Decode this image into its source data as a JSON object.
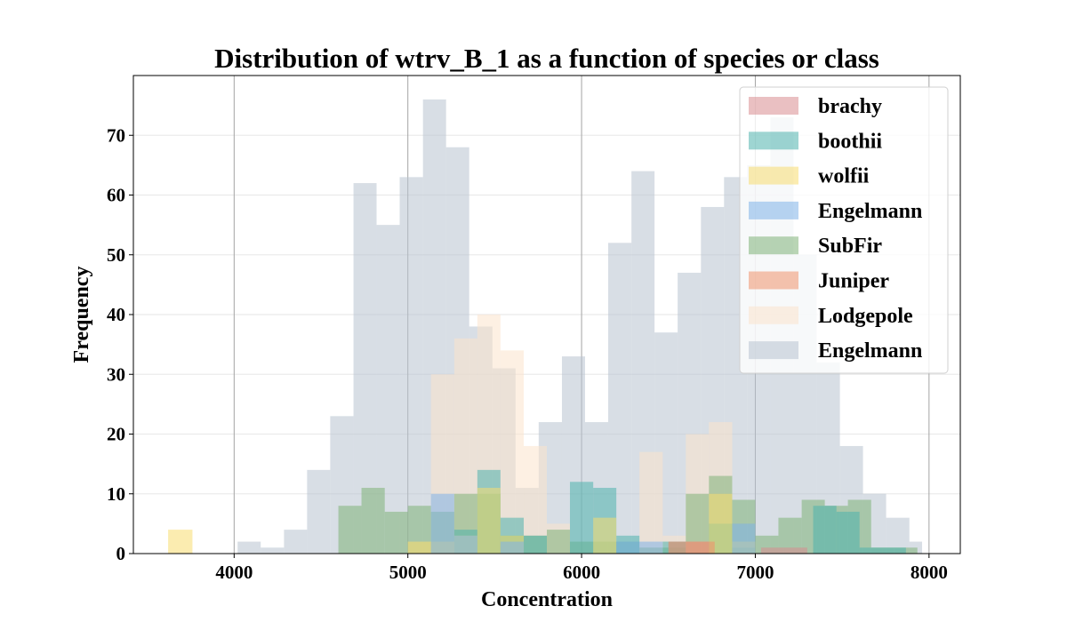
{
  "chart_data": {
    "type": "histogram",
    "title": "Distribution of wtrv_B_1 as a function of species or class",
    "xlabel": "Concentration",
    "ylabel": "Frequency",
    "xlim": [
      3420,
      8180
    ],
    "ylim": [
      0,
      80
    ],
    "x_ticks": [
      4000,
      5000,
      6000,
      7000,
      8000
    ],
    "y_ticks": [
      0,
      10,
      20,
      30,
      40,
      50,
      60,
      70
    ],
    "grid": {
      "x": true,
      "y": true
    },
    "legend_placement": "top-right",
    "series": [
      {
        "name": "brachy",
        "color": "#d98c8f",
        "bins": [
          [
            6500,
            6633,
            2
          ],
          [
            6633,
            6766,
            2
          ],
          [
            7033,
            7166,
            1
          ],
          [
            7166,
            7299,
            1
          ]
        ]
      },
      {
        "name": "boothii",
        "color": "#4fb3ad",
        "bins": [
          [
            5267,
            5400,
            4
          ],
          [
            5400,
            5533,
            14
          ],
          [
            5533,
            5667,
            6
          ],
          [
            5667,
            5800,
            3
          ],
          [
            5933,
            6067,
            12
          ],
          [
            6067,
            6200,
            11
          ],
          [
            6200,
            6333,
            3
          ],
          [
            6467,
            6600,
            2
          ],
          [
            6733,
            6867,
            5
          ],
          [
            6867,
            7000,
            1
          ],
          [
            7333,
            7467,
            8
          ],
          [
            7467,
            7600,
            7
          ],
          [
            7600,
            7733,
            1
          ],
          [
            7733,
            7867,
            1
          ]
        ]
      },
      {
        "name": "wolfii",
        "color": "#f7dc6f",
        "bins": [
          [
            3620,
            3760,
            4
          ],
          [
            5000,
            5133,
            2
          ],
          [
            5133,
            5267,
            2
          ],
          [
            5267,
            5400,
            3
          ],
          [
            5400,
            5533,
            11
          ],
          [
            5533,
            5667,
            3
          ],
          [
            6067,
            6200,
            6
          ],
          [
            6733,
            6867,
            10
          ],
          [
            6867,
            7000,
            2
          ]
        ]
      },
      {
        "name": "Engelmann",
        "color": "#7fb3e8",
        "bins": [
          [
            5133,
            5267,
            10
          ],
          [
            5267,
            5400,
            3
          ],
          [
            5533,
            5667,
            2
          ],
          [
            6200,
            6333,
            2
          ],
          [
            6333,
            6467,
            2
          ],
          [
            6867,
            7000,
            5
          ]
        ]
      },
      {
        "name": "SubFir",
        "color": "#7fb379",
        "bins": [
          [
            4600,
            4733,
            8
          ],
          [
            4733,
            4867,
            11
          ],
          [
            4867,
            5000,
            7
          ],
          [
            5000,
            5133,
            8
          ],
          [
            5133,
            5267,
            7
          ],
          [
            5267,
            5400,
            10
          ],
          [
            5400,
            5533,
            10
          ],
          [
            5533,
            5667,
            3
          ],
          [
            5667,
            5800,
            3
          ],
          [
            5800,
            5933,
            4
          ],
          [
            5933,
            6067,
            2
          ],
          [
            6067,
            6200,
            2
          ],
          [
            6200,
            6333,
            2
          ],
          [
            6333,
            6467,
            1
          ],
          [
            6467,
            6600,
            1
          ],
          [
            6600,
            6733,
            10
          ],
          [
            6733,
            6867,
            13
          ],
          [
            6867,
            7000,
            9
          ],
          [
            7000,
            7133,
            3
          ],
          [
            7133,
            7267,
            6
          ],
          [
            7267,
            7400,
            9
          ],
          [
            7400,
            7533,
            8
          ],
          [
            7533,
            7667,
            9
          ],
          [
            7667,
            7800,
            1
          ],
          [
            7800,
            7933,
            1
          ]
        ]
      },
      {
        "name": "Juniper",
        "color": "#f0946b",
        "bins": [
          [
            6500,
            6633,
            2
          ],
          [
            6633,
            6766,
            2
          ]
        ]
      },
      {
        "name": "Lodgepole",
        "color": "#fbe3cc",
        "bins": [
          [
            5000,
            5133,
            2
          ],
          [
            5133,
            5267,
            30
          ],
          [
            5267,
            5400,
            36
          ],
          [
            5400,
            5533,
            40
          ],
          [
            5533,
            5667,
            34
          ],
          [
            5667,
            5800,
            18
          ],
          [
            5800,
            5933,
            5
          ],
          [
            6333,
            6467,
            17
          ],
          [
            6467,
            6600,
            3
          ],
          [
            6600,
            6733,
            20
          ],
          [
            6733,
            6867,
            22
          ]
        ]
      },
      {
        "name": "Engelmann",
        "color": "#b8c2d0",
        "bins": [
          [
            4020,
            4153,
            2
          ],
          [
            4153,
            4287,
            1
          ],
          [
            4287,
            4420,
            4
          ],
          [
            4420,
            4553,
            14
          ],
          [
            4553,
            4687,
            23
          ],
          [
            4687,
            4820,
            62
          ],
          [
            4820,
            4953,
            55
          ],
          [
            4953,
            5087,
            63
          ],
          [
            5087,
            5220,
            76
          ],
          [
            5220,
            5353,
            68
          ],
          [
            5353,
            5487,
            38
          ],
          [
            5487,
            5620,
            31
          ],
          [
            5620,
            5753,
            11
          ],
          [
            5753,
            5887,
            22
          ],
          [
            5887,
            6020,
            33
          ],
          [
            6020,
            6153,
            22
          ],
          [
            6153,
            6287,
            52
          ],
          [
            6287,
            6420,
            64
          ],
          [
            6420,
            6553,
            37
          ],
          [
            6553,
            6687,
            47
          ],
          [
            6687,
            6820,
            58
          ],
          [
            6820,
            6953,
            63
          ],
          [
            6953,
            7087,
            65
          ],
          [
            7087,
            7220,
            73
          ],
          [
            7220,
            7353,
            50
          ],
          [
            7353,
            7487,
            32
          ],
          [
            7487,
            7620,
            18
          ],
          [
            7620,
            7753,
            10
          ],
          [
            7753,
            7887,
            6
          ],
          [
            7887,
            7960,
            2
          ]
        ]
      }
    ],
    "draw_order": [
      7,
      6,
      4,
      0,
      1,
      2,
      3,
      5
    ]
  }
}
